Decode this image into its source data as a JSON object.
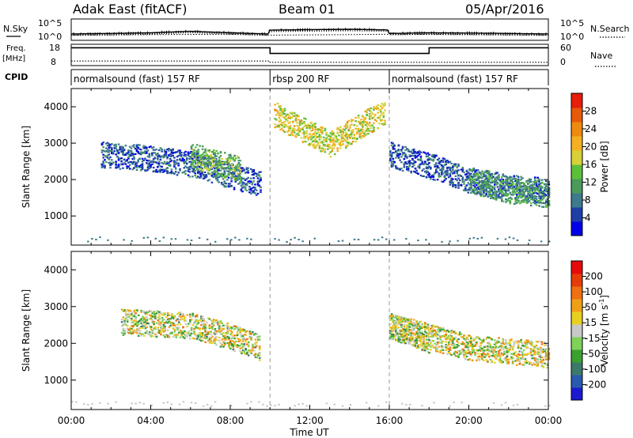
{
  "header": {
    "title": "Adak East (fitACF)",
    "beam": "Beam 01",
    "date": "05/Apr/2016"
  },
  "sky_panel": {
    "left_label": "N.Sky",
    "right_label": "N.Search",
    "left_ticks": [
      "10^5",
      "10^0"
    ],
    "right_ticks": [
      "10^5",
      "10^0"
    ]
  },
  "freq_panel": {
    "left_label_1": "Freq.",
    "left_label_2": "[MHz]",
    "right_label": "Nave",
    "left_ticks": [
      "18",
      "8"
    ],
    "right_ticks": [
      "60",
      "0"
    ]
  },
  "cpid": {
    "label": "CPID",
    "segments": [
      {
        "label": "normalsound (fast) 157 RF",
        "start_hour": 0,
        "end_hour": 10
      },
      {
        "label": "rbsp 200 RF",
        "start_hour": 10,
        "end_hour": 16
      },
      {
        "label": "normalsound (fast) 157 RF",
        "start_hour": 16,
        "end_hour": 24
      }
    ]
  },
  "power_colorbar": {
    "label": "Power [dB]",
    "ticks": [
      "4",
      "8",
      "12",
      "16",
      "20",
      "24",
      "28"
    ],
    "colors": [
      "#0000e6",
      "#1e3fa8",
      "#3c7a8c",
      "#4a9a5c",
      "#5bbf3a",
      "#d8d038",
      "#f4b020",
      "#ee8a10",
      "#e65a0a",
      "#e61e0a"
    ]
  },
  "velocity_colorbar": {
    "label": "Velocity [m s",
    "superscript": "-1",
    "label_end": "]",
    "ticks": [
      "200",
      "100",
      "50",
      "15",
      "-15",
      "-50",
      "-100",
      "-200"
    ],
    "colors": [
      "#1a1ad0",
      "#2a5ab0",
      "#3b7a6a",
      "#3aa030",
      "#7ed25a",
      "#c8c8c8",
      "#e8d020",
      "#f0a018",
      "#ee7010",
      "#e63c0a",
      "#e60a0a"
    ]
  },
  "x_axis": {
    "label": "Time UT",
    "ticks": [
      "00:00",
      "04:00",
      "08:00",
      "12:00",
      "16:00",
      "20:00",
      "00:00"
    ]
  },
  "chart_data": [
    {
      "type": "line",
      "title": "N.Sky / N.Search",
      "x_unit": "hours UT",
      "ylabel": "N.Sky",
      "y2label": "N.Search",
      "yscale": "log",
      "ylim": [
        1,
        100000
      ],
      "series": [
        {
          "name": "N.Sky",
          "x": [
            0,
            2,
            4,
            6,
            8,
            9.9,
            10,
            12,
            14,
            15.9,
            16,
            18,
            20,
            22,
            24
          ],
          "values": [
            30,
            40,
            60,
            150,
            60,
            30,
            300,
            400,
            500,
            350,
            40,
            60,
            50,
            40,
            30
          ]
        },
        {
          "name": "N.Search",
          "x": [
            0,
            4,
            8,
            10,
            14,
            16,
            20,
            24
          ],
          "values": [
            15,
            20,
            25,
            15,
            20,
            25,
            20,
            15
          ]
        }
      ]
    },
    {
      "type": "line",
      "title": "Freq / Nave",
      "x_unit": "hours UT",
      "ylabel": "Freq. [MHz]",
      "y2label": "Nave",
      "ylim": [
        8,
        18
      ],
      "y2lim": [
        0,
        60
      ],
      "series": [
        {
          "name": "Freq.",
          "x": [
            0,
            10,
            10,
            18,
            18,
            24
          ],
          "values": [
            17,
            17,
            14,
            14,
            17,
            17
          ]
        },
        {
          "name": "Nave",
          "x": [
            0,
            10,
            10,
            24
          ],
          "values": [
            12,
            12,
            8,
            8
          ]
        }
      ]
    },
    {
      "type": "heatmap",
      "title": "Power",
      "xlabel": "Time UT",
      "ylabel": "Slant Range [km]",
      "xlim": [
        0,
        24
      ],
      "ylim": [
        200,
        4500
      ],
      "yticks": [
        1000,
        2000,
        3000,
        4000
      ],
      "colorbar_range_db": [
        0,
        32
      ],
      "echo_regions": [
        {
          "x_start": 1.5,
          "x_end": 9.5,
          "range_km": [
            [
              1.5,
              2700
            ],
            [
              4,
              2600
            ],
            [
              6.5,
              2400
            ],
            [
              7.5,
              2200
            ],
            [
              9.5,
              1900
            ]
          ],
          "power_db": 6
        },
        {
          "x_start": 6.0,
          "x_end": 8.5,
          "range_km": [
            [
              6.0,
              2700
            ],
            [
              7.0,
              2500
            ],
            [
              8.5,
              2300
            ]
          ],
          "power_db": 13
        },
        {
          "x_start": 16.0,
          "x_end": 24.0,
          "range_km": [
            [
              16,
              2700
            ],
            [
              18,
              2400
            ],
            [
              20,
              2000
            ],
            [
              22,
              1800
            ],
            [
              24,
              1700
            ]
          ],
          "power_db": 6
        },
        {
          "x_start": 20.0,
          "x_end": 24.0,
          "range_km": [
            [
              20,
              2000
            ],
            [
              22,
              1700
            ],
            [
              24,
              1600
            ]
          ],
          "power_db": 11
        },
        {
          "x_start": 10.2,
          "x_end": 15.8,
          "range_km": [
            [
              10.2,
              3800
            ],
            [
              13,
              3000
            ],
            [
              15.8,
              3900
            ]
          ],
          "power_db": 18
        }
      ]
    },
    {
      "type": "heatmap",
      "title": "Velocity",
      "xlabel": "Time UT",
      "ylabel": "Slant Range [km]",
      "xlim": [
        0,
        24
      ],
      "ylim": [
        200,
        4500
      ],
      "yticks": [
        1000,
        2000,
        3000,
        4000
      ],
      "colorbar_range_ms": [
        -250,
        250
      ],
      "echo_regions": [
        {
          "x_start": 2.5,
          "x_end": 9.5,
          "range_km": [
            [
              2.5,
              2600
            ],
            [
              6,
              2500
            ],
            [
              8,
              2200
            ],
            [
              9.5,
              1900
            ]
          ],
          "velocity_ms": 0
        },
        {
          "x_start": 16.0,
          "x_end": 24.0,
          "range_km": [
            [
              16,
              2500
            ],
            [
              18,
              2200
            ],
            [
              20,
              1900
            ],
            [
              24,
              1700
            ]
          ],
          "velocity_ms": -10
        },
        {
          "x_start": 16.0,
          "x_end": 18.0,
          "range_km": [
            [
              16,
              2500
            ],
            [
              18,
              2100
            ]
          ],
          "velocity_ms": 30
        }
      ]
    }
  ]
}
